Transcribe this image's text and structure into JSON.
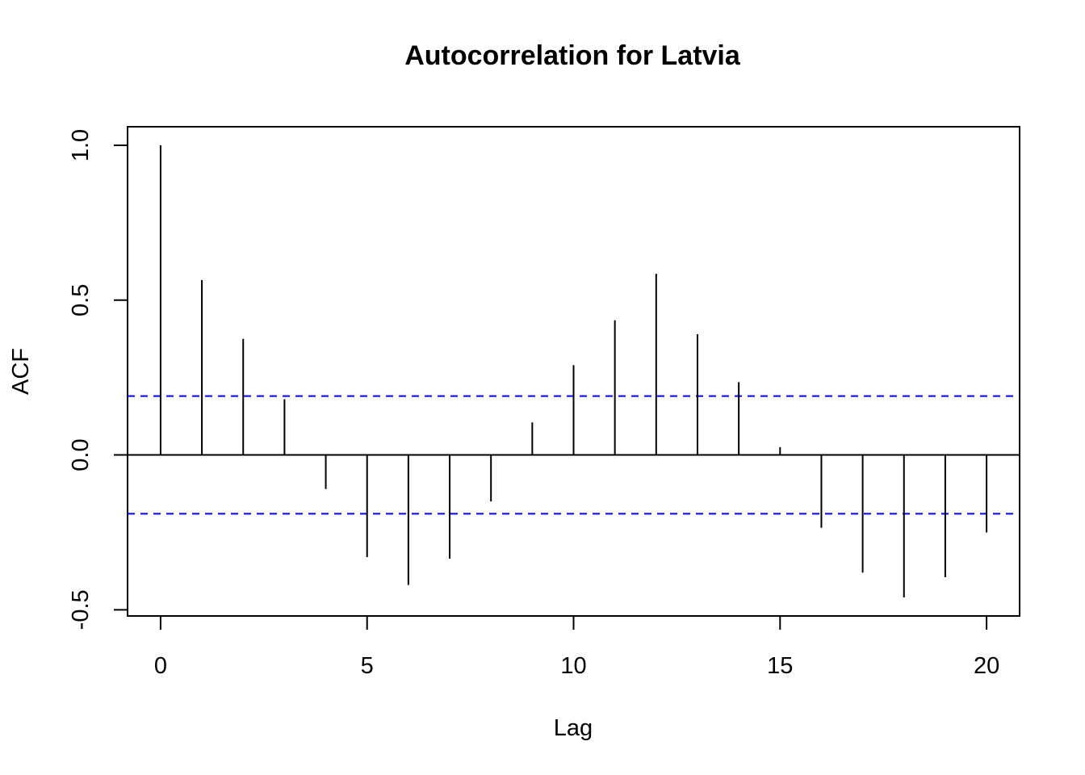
{
  "chart_data": {
    "type": "bar",
    "title": "Autocorrelation for Latvia",
    "xlabel": "Lag",
    "ylabel": "ACF",
    "xlim": [
      -0.8,
      20.8
    ],
    "ylim": [
      -0.52,
      1.06
    ],
    "x_ticks": [
      0,
      5,
      10,
      15,
      20
    ],
    "x_tick_labels": [
      "0",
      "5",
      "10",
      "15",
      "20"
    ],
    "y_ticks": [
      -0.5,
      0.0,
      0.5,
      1.0
    ],
    "y_tick_labels": [
      "-0.5",
      "0.0",
      "0.5",
      "1.0"
    ],
    "lags": [
      0,
      1,
      2,
      3,
      4,
      5,
      6,
      7,
      8,
      9,
      10,
      11,
      12,
      13,
      14,
      15,
      16,
      17,
      18,
      19,
      20
    ],
    "values": [
      1.0,
      0.565,
      0.375,
      0.18,
      -0.11,
      -0.33,
      -0.42,
      -0.335,
      -0.15,
      0.105,
      0.29,
      0.435,
      0.585,
      0.39,
      0.235,
      0.025,
      -0.235,
      -0.38,
      -0.46,
      -0.395,
      -0.25
    ],
    "confidence_bound": 0.19,
    "colors": {
      "bars": "#000000",
      "confidence": "#0000ff",
      "zero_line": "#000000"
    }
  }
}
